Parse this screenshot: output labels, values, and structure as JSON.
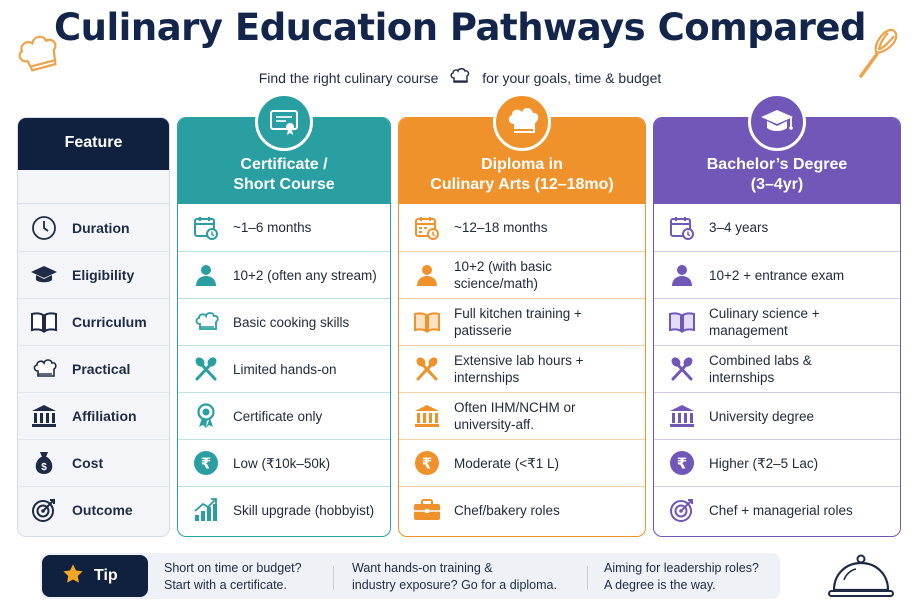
{
  "title": "Culinary Education Pathways Compared",
  "subtitle": {
    "before": "Find the right culinary course",
    "after": "for your goals, time & budget"
  },
  "feature_header": "Feature",
  "features": [
    {
      "label": "Duration",
      "icon": "clock-icon"
    },
    {
      "label": "Eligibility",
      "icon": "graduation-cap-icon"
    },
    {
      "label": "Curriculum",
      "icon": "book-icon"
    },
    {
      "label": "Practical",
      "icon": "chef-hat-icon"
    },
    {
      "label": "Affiliation",
      "icon": "institution-icon"
    },
    {
      "label": "Cost",
      "icon": "money-bag-icon"
    },
    {
      "label": "Outcome",
      "icon": "target-icon"
    }
  ],
  "columns": [
    {
      "key": "cert",
      "title_line1": "Certificate /",
      "title_line2": "Short Course",
      "color": "#2a9fa1",
      "badge_icon": "certificate-icon",
      "cells": [
        "~1–6 months",
        "10+2 (often any stream)",
        "Basic cooking skills",
        "Limited hands-on",
        "Certificate only",
        "Low (₹10k–50k)",
        "Skill upgrade (hobbyist)"
      ]
    },
    {
      "key": "dip",
      "title_line1": "Diploma in",
      "title_line2": "Culinary Arts (12–18mo)",
      "color": "#f0922b",
      "badge_icon": "chef-hat-icon",
      "cells": [
        "~12–18 months",
        "10+2 (with basic\nscience/math)",
        "Full kitchen training +\npatisserie",
        "Extensive lab hours +\ninternships",
        "Often IHM/NCHM or\nuniversity-aff.",
        "Moderate (<₹1 L)",
        "Chef/bakery roles"
      ]
    },
    {
      "key": "bach",
      "title_line1": "Bachelor’s Degree",
      "title_line2": "(3–4yr)",
      "color": "#7157b8",
      "badge_icon": "mortarboard-icon",
      "cells": [
        "3–4 years",
        "10+2 + entrance exam",
        "Culinary science +\nmanagement",
        "Combined labs &\ninternships",
        "University degree",
        "Higher (₹2–5 Lac)",
        "Chef + managerial roles"
      ]
    }
  ],
  "tip": {
    "label": "Tip",
    "items": [
      {
        "line1": "Short on time or budget?",
        "line2": "Start with a certificate."
      },
      {
        "line1": "Want hands-on training &",
        "line2": "industry exposure? Go for a diploma."
      },
      {
        "line1": "Aiming for leadership roles?",
        "line2": "A degree is the way."
      }
    ]
  }
}
